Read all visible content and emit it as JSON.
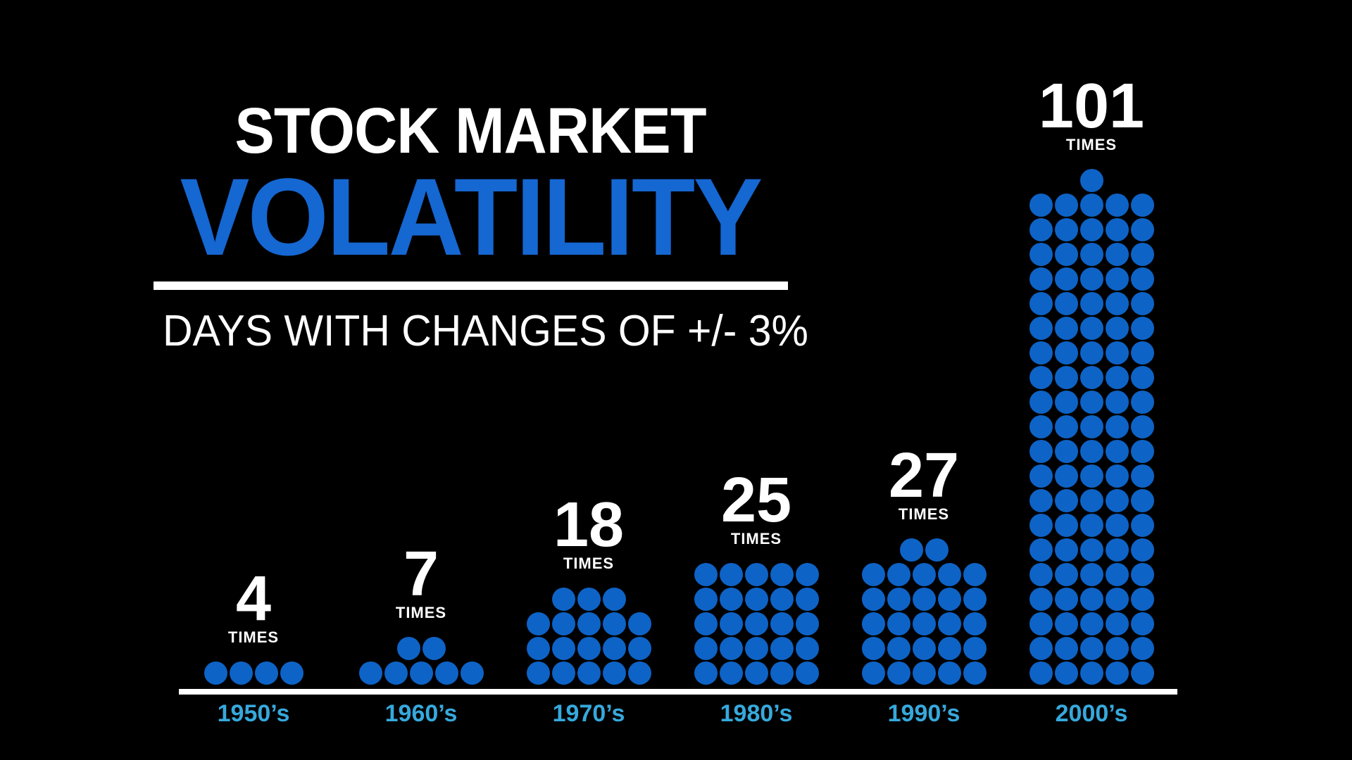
{
  "header": {
    "title_line1": "STOCK MARKET",
    "title_line2": "VOLATILITY",
    "subtitle": "DAYS WITH CHANGES OF +/- 3%"
  },
  "unit_label": "TIMES",
  "columns": [
    {
      "decade": "1950’s",
      "count": 4
    },
    {
      "decade": "1960’s",
      "count": 7
    },
    {
      "decade": "1970’s",
      "count": 18
    },
    {
      "decade": "1980’s",
      "count": 25
    },
    {
      "decade": "1990’s",
      "count": 27
    },
    {
      "decade": "2000’s",
      "count": 101
    }
  ],
  "colors": {
    "background": "#000000",
    "title_blue": "#1567D2",
    "dot_blue": "#0E63C6",
    "decade_cyan": "#36A9DC",
    "text_white": "#FFFFFF"
  },
  "chart_data": {
    "type": "bar",
    "variant": "dot-pictogram",
    "title": "STOCK MARKET VOLATILITY",
    "subtitle": "DAYS WITH CHANGES OF +/- 3%",
    "categories": [
      "1950’s",
      "1960’s",
      "1970’s",
      "1980’s",
      "1990’s",
      "2000’s"
    ],
    "values": [
      4,
      7,
      18,
      25,
      27,
      101
    ],
    "unit": "TIMES",
    "dots_per_row": 5,
    "remainder_dot_alignment": "centered-top-row",
    "bar_alignment": "bottom",
    "legend": "none",
    "grid": false,
    "orientation": "vertical"
  }
}
